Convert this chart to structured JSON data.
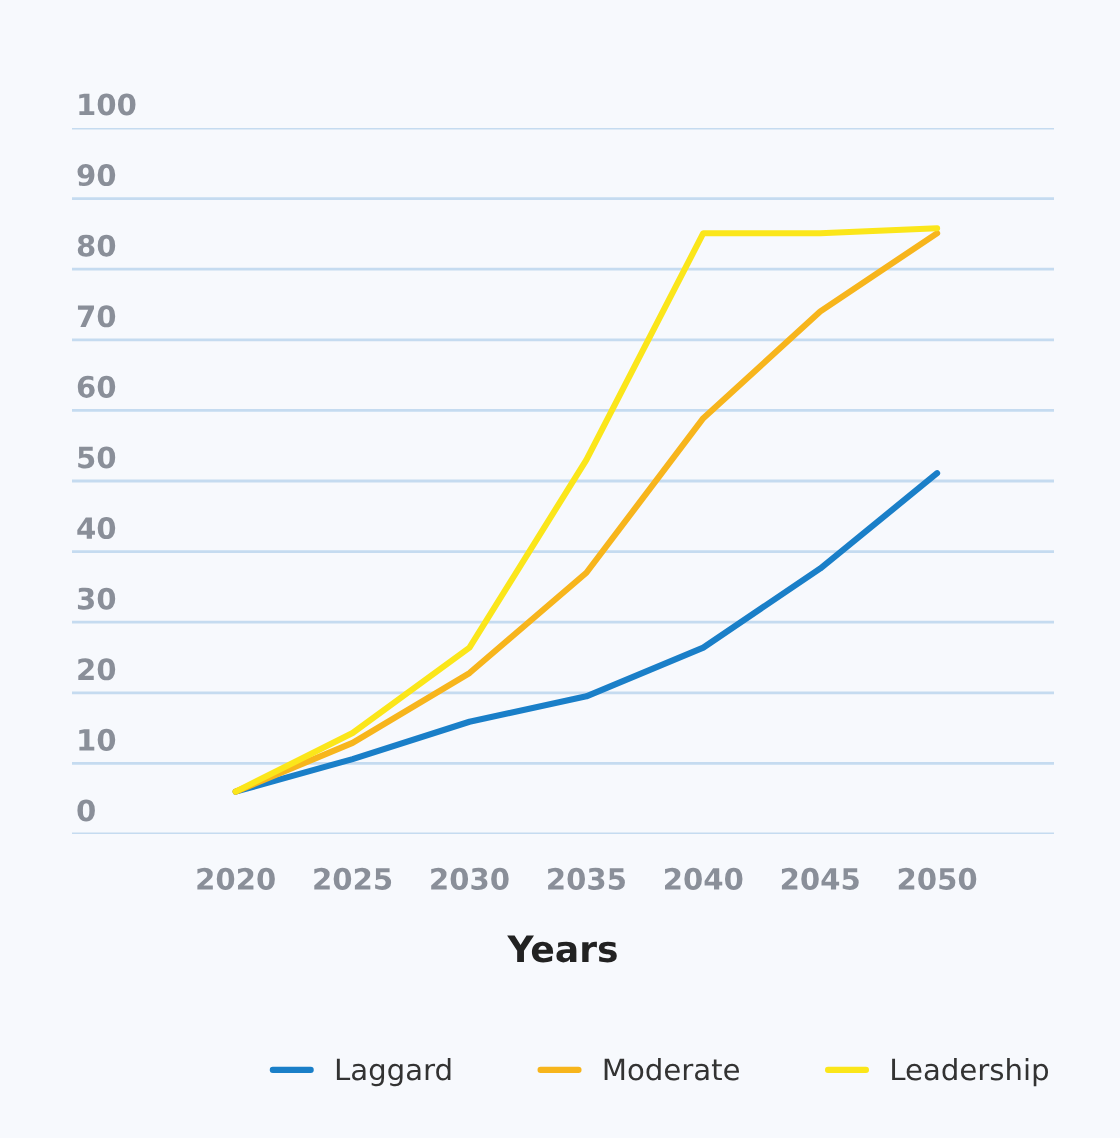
{
  "chart_data": {
    "type": "line",
    "xlabel": "Years",
    "x": [
      2020,
      2025,
      2030,
      2035,
      2040,
      2045,
      2050
    ],
    "series": [
      {
        "name": "Laggard",
        "color": "#1a7fc8",
        "values": [
          6,
          10.6,
          15.9,
          19.5,
          26.4,
          37.6,
          51.1
        ]
      },
      {
        "name": "Moderate",
        "color": "#f7b51c",
        "values": [
          6,
          12.9,
          22.8,
          37,
          58.9,
          74,
          85.1
        ]
      },
      {
        "name": "Leadership",
        "color": "#fbe61a",
        "values": [
          6,
          14.3,
          26.4,
          53,
          85.1,
          85.1,
          85.8
        ]
      }
    ],
    "xlim": [
      2013,
      2055
    ],
    "xticks": [
      2020,
      2025,
      2030,
      2035,
      2040,
      2045,
      2050
    ],
    "ylim": [
      0,
      100
    ],
    "yticks": [
      0,
      10,
      20,
      30,
      40,
      50,
      60,
      70,
      80,
      90,
      100
    ],
    "grid": "y",
    "legend": "bottom",
    "marker": "none",
    "line_style": "solid"
  }
}
